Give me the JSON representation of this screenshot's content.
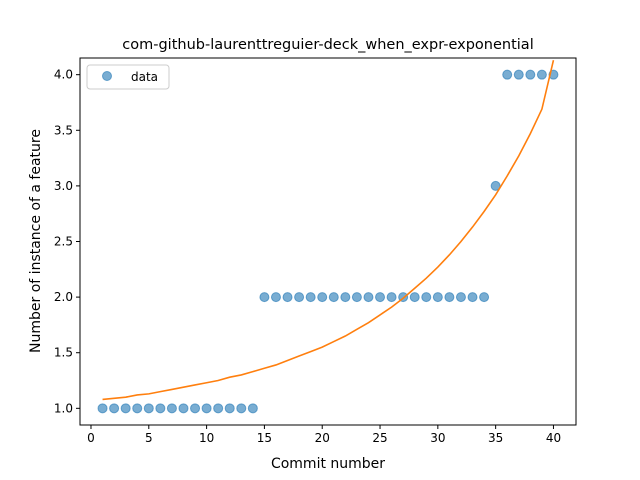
{
  "chart_data": {
    "type": "scatter",
    "title": "com-github-laurenttreguier-deck_when_expr-exponential",
    "xlabel": "Commit number",
    "ylabel": "Number of instance of a feature",
    "xlim": [
      -0.95,
      41.95
    ],
    "ylim": [
      0.85,
      4.15
    ],
    "xticks": [
      0,
      5,
      10,
      15,
      20,
      25,
      30,
      35,
      40
    ],
    "yticks": [
      1.0,
      1.5,
      2.0,
      2.5,
      3.0,
      3.5,
      4.0
    ],
    "ytick_labels": [
      "1.0",
      "1.5",
      "2.0",
      "2.5",
      "3.0",
      "3.5",
      "4.0"
    ],
    "grid": false,
    "legend": {
      "position": "top-left",
      "entries": [
        "data"
      ]
    },
    "series": [
      {
        "name": "data",
        "kind": "scatter",
        "color": "#1f77b4",
        "alpha": 0.6,
        "x": [
          1,
          2,
          3,
          4,
          5,
          6,
          7,
          8,
          9,
          10,
          11,
          12,
          13,
          14,
          15,
          16,
          17,
          18,
          19,
          20,
          21,
          22,
          23,
          24,
          25,
          26,
          27,
          28,
          29,
          30,
          31,
          32,
          33,
          34,
          35,
          36,
          37,
          38,
          39,
          40
        ],
        "y": [
          1,
          1,
          1,
          1,
          1,
          1,
          1,
          1,
          1,
          1,
          1,
          1,
          1,
          1,
          2,
          2,
          2,
          2,
          2,
          2,
          2,
          2,
          2,
          2,
          2,
          2,
          2,
          2,
          2,
          2,
          2,
          2,
          2,
          2,
          3,
          4,
          4,
          4,
          4,
          4
        ]
      },
      {
        "kind": "line",
        "color": "#ff7f0e",
        "x": [
          1,
          2,
          3,
          4,
          5,
          6,
          7,
          8,
          9,
          10,
          11,
          12,
          13,
          14,
          15,
          16,
          17,
          18,
          19,
          20,
          21,
          22,
          23,
          24,
          25,
          26,
          27,
          28,
          29,
          30,
          31,
          32,
          33,
          34,
          35,
          36,
          37,
          38,
          39,
          40
        ],
        "y": [
          1.08,
          1.09,
          1.1,
          1.12,
          1.13,
          1.15,
          1.17,
          1.19,
          1.21,
          1.23,
          1.25,
          1.28,
          1.3,
          1.33,
          1.36,
          1.39,
          1.43,
          1.47,
          1.51,
          1.55,
          1.6,
          1.65,
          1.71,
          1.77,
          1.84,
          1.91,
          1.99,
          2.08,
          2.17,
          2.27,
          2.38,
          2.5,
          2.63,
          2.77,
          2.92,
          3.09,
          3.27,
          3.47,
          3.69,
          4.13
        ]
      }
    ]
  }
}
